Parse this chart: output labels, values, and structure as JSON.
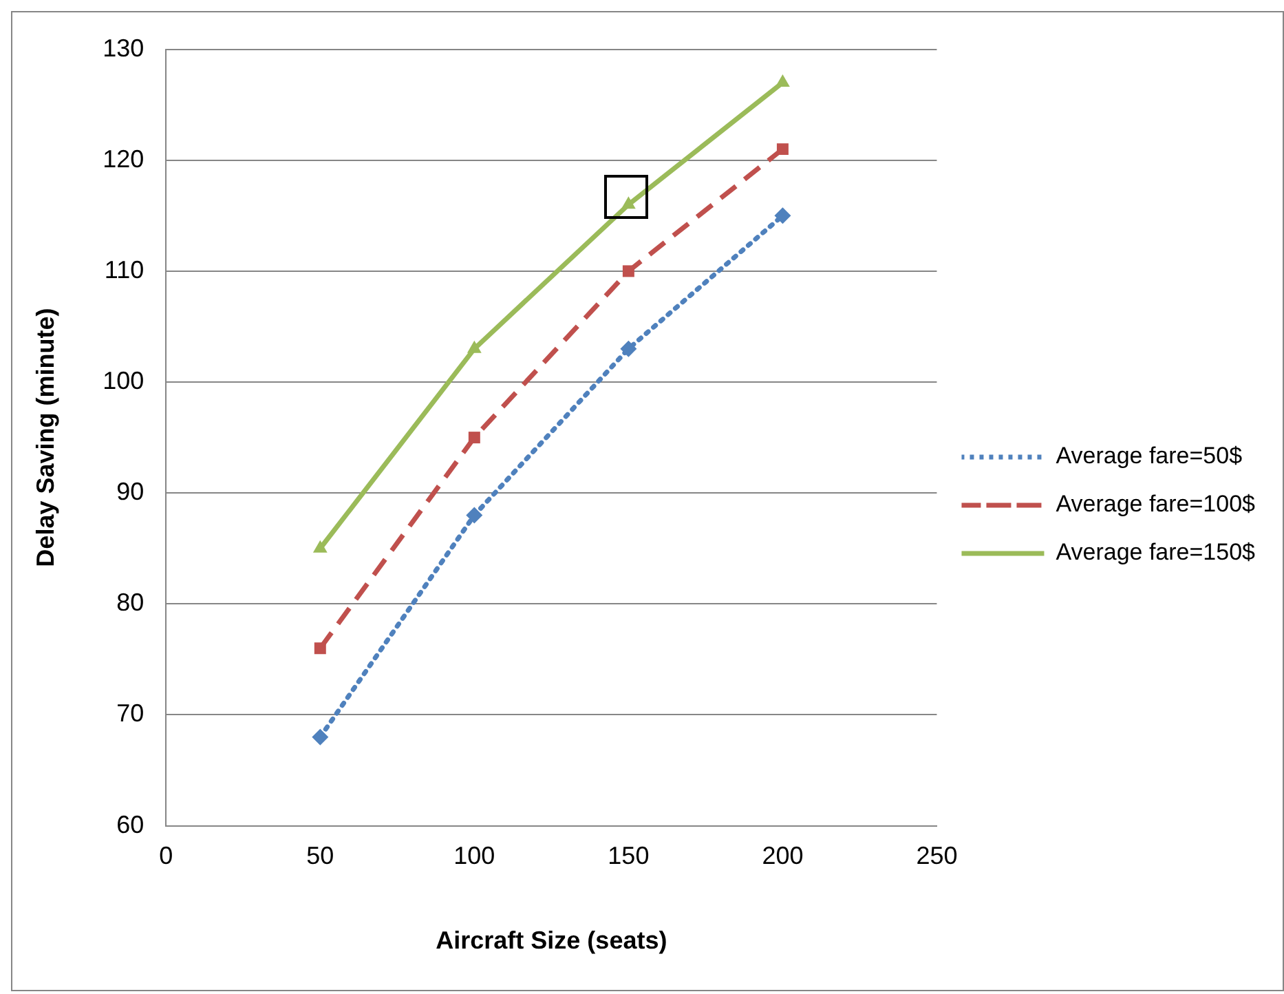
{
  "chart_data": {
    "type": "line",
    "xlabel": "Aircraft Size (seats)",
    "ylabel": "Delay Saving (minute)",
    "x": [
      50,
      100,
      150,
      200
    ],
    "series": [
      {
        "name": "Average fare=50$",
        "color": "#4f81bd",
        "values": [
          68,
          88,
          103,
          115
        ],
        "marker": "diamond",
        "line_style": "dotted"
      },
      {
        "name": "Average fare=100$",
        "color": "#c0504d",
        "values": [
          76,
          95,
          110,
          121
        ],
        "marker": "square",
        "line_style": "dashed"
      },
      {
        "name": "Average fare=150$",
        "color": "#9bbb59",
        "values": [
          85,
          103,
          116,
          127
        ],
        "marker": "triangle",
        "line_style": "solid"
      }
    ],
    "xlim": [
      0,
      250
    ],
    "xticks": [
      0,
      50,
      100,
      150,
      200,
      250
    ],
    "ylim": [
      60,
      130
    ],
    "yticks": [
      60,
      70,
      80,
      90,
      100,
      110,
      120,
      130
    ],
    "grid": "y",
    "legend": "right"
  }
}
